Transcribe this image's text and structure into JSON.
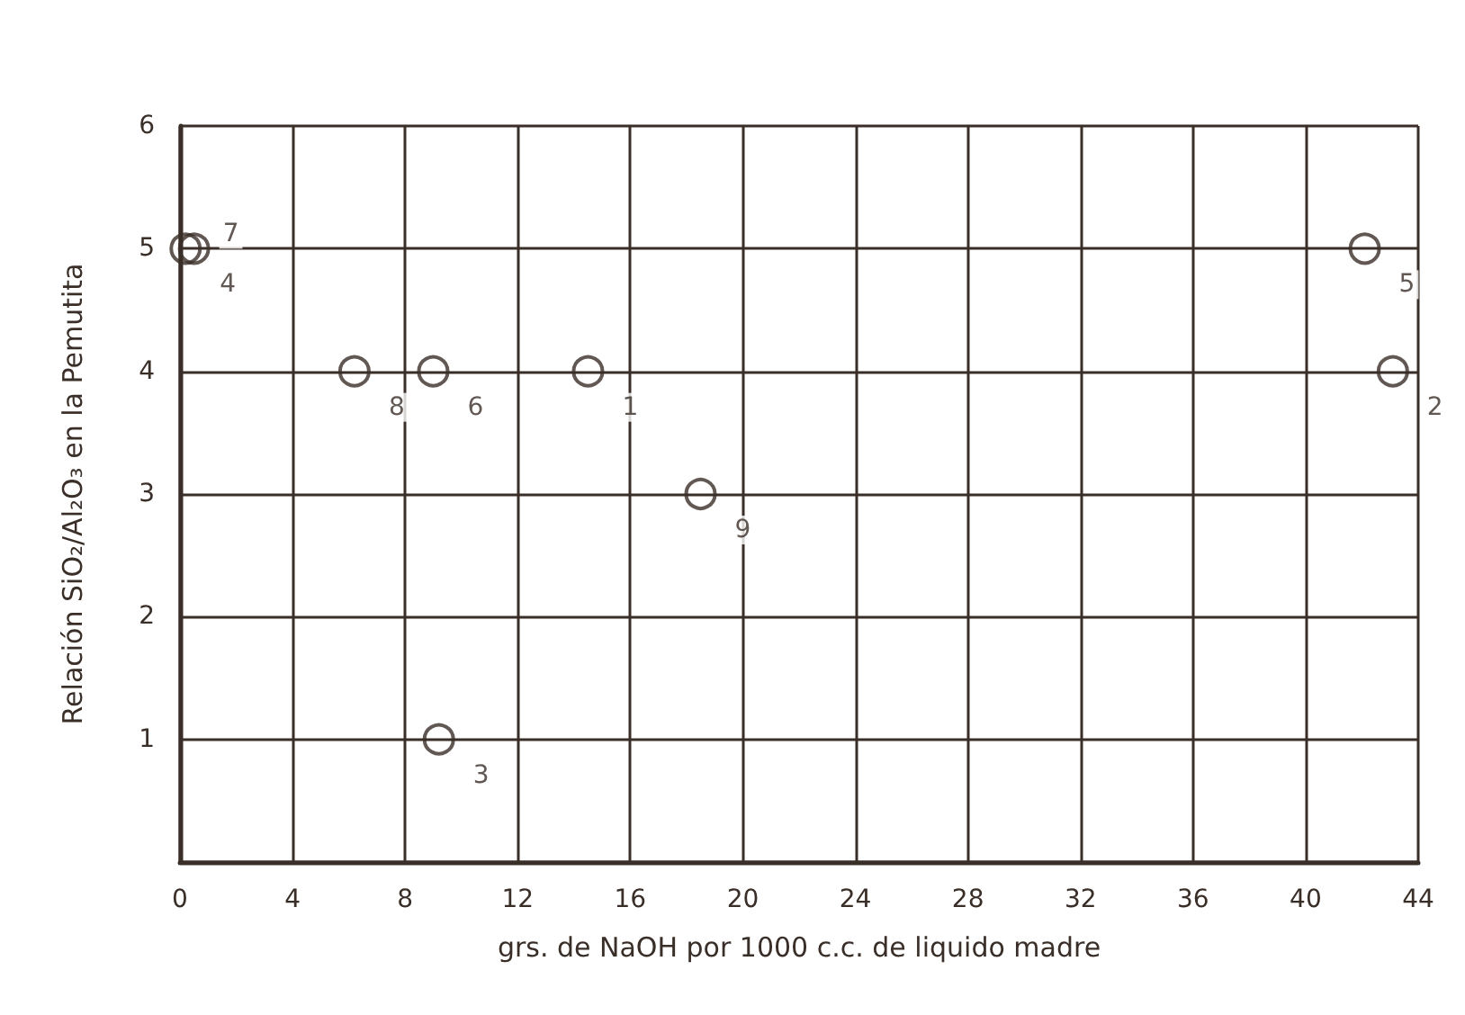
{
  "chart_data": {
    "type": "scatter",
    "xlabel": "grs. de NaOH por 1000 c.c. de liquido madre",
    "ylabel": "Relación SiO₂/Al₂O₃ en la Pemutita",
    "x": [
      14.5,
      43.1,
      9.2,
      0.2,
      42.1,
      9.0,
      0.5,
      6.2,
      18.5
    ],
    "values": [
      4,
      4,
      1,
      5,
      5,
      4,
      5,
      4,
      3
    ],
    "annotations": [
      {
        "text": "1",
        "x": 14.5,
        "y": 4
      },
      {
        "text": "2",
        "x": 43.1,
        "y": 4
      },
      {
        "text": "3",
        "x": 9.2,
        "y": 1
      },
      {
        "text": "4",
        "x": 0.2,
        "y": 5
      },
      {
        "text": "5",
        "x": 42.1,
        "y": 5
      },
      {
        "text": "6",
        "x": 9.0,
        "y": 4
      },
      {
        "text": "7",
        "x": 0.5,
        "y": 5
      },
      {
        "text": "8",
        "x": 6.2,
        "y": 4
      },
      {
        "text": "9",
        "x": 18.5,
        "y": 3
      }
    ],
    "color": "#3a2e28",
    "marker": "circle",
    "xlim": [
      0,
      44
    ],
    "xticks": [
      0,
      4,
      8,
      12,
      16,
      20,
      24,
      28,
      32,
      36,
      40,
      44
    ],
    "ylim": [
      0,
      6
    ],
    "yticks": [
      {
        "value": 0,
        "label": null
      },
      1,
      2,
      3,
      4,
      5,
      6
    ],
    "grid": true
  }
}
